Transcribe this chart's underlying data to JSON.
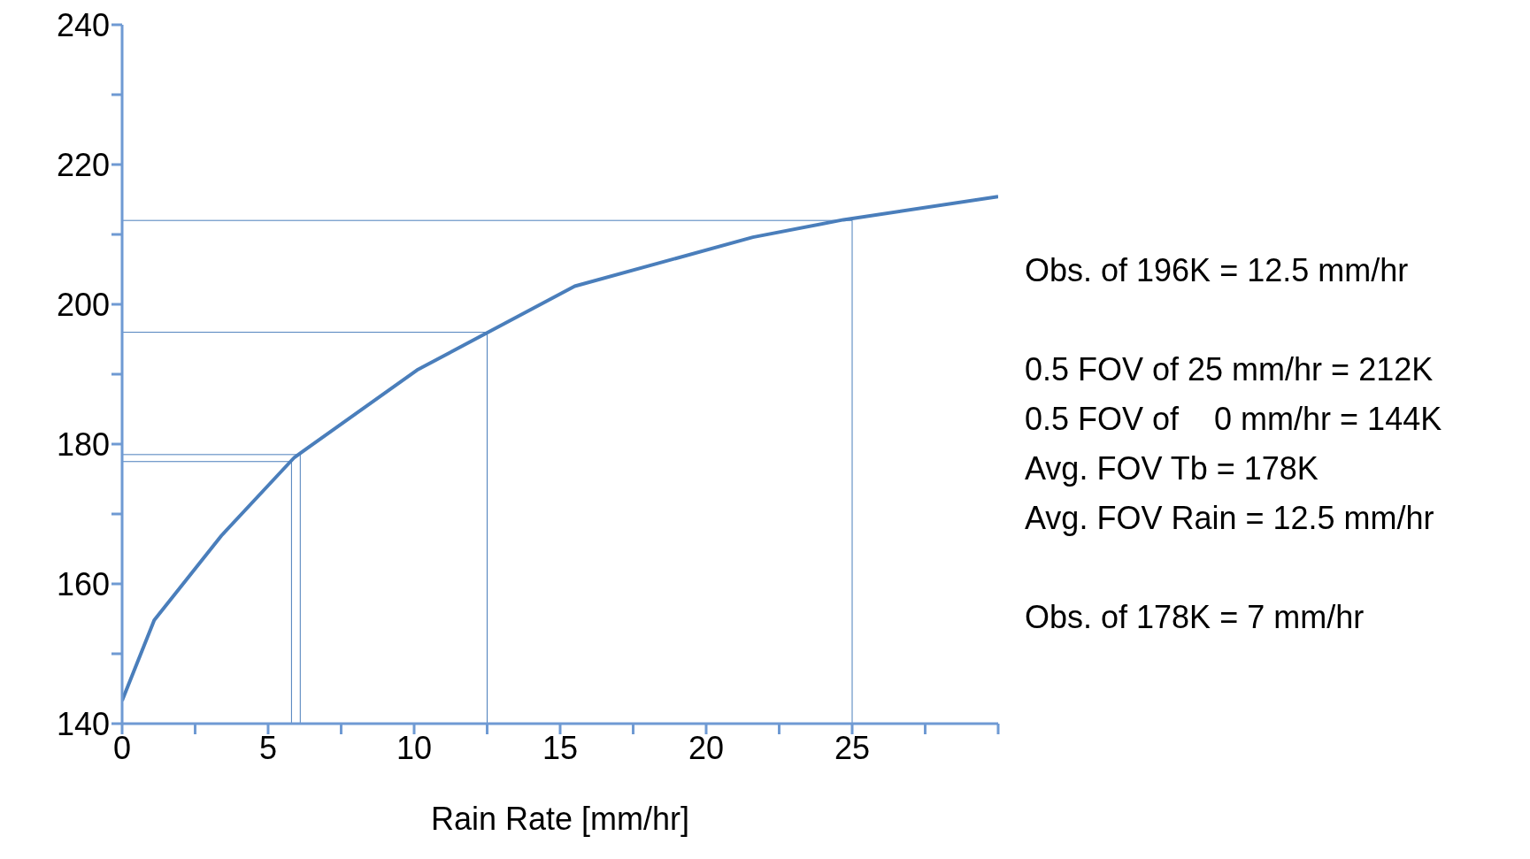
{
  "chart_data": {
    "type": "line",
    "xlabel": "Rain Rate [mm/hr]",
    "xlim": [
      0,
      30
    ],
    "ylim": [
      140,
      240
    ],
    "xticks": [
      0,
      {
        "value": 2.5,
        "label": null
      },
      5,
      {
        "value": 7.5,
        "label": null
      },
      10,
      {
        "value": 12.5,
        "label": null
      },
      15,
      {
        "value": 17.5,
        "label": null
      },
      20,
      {
        "value": 22.5,
        "label": null
      },
      25,
      {
        "value": 27.5,
        "label": null
      },
      {
        "value": 30,
        "label": null
      }
    ],
    "yticks": [
      140,
      {
        "value": 150,
        "label": null
      },
      160,
      {
        "value": 170,
        "label": null
      },
      180,
      {
        "value": 190,
        "label": null
      },
      200,
      {
        "value": 210,
        "label": null
      },
      220,
      {
        "value": 230,
        "label": null
      },
      240
    ],
    "series": [
      {
        "color": "#4a7ebb",
        "x": [
          0,
          1.1,
          3.4,
          5.9,
          10.1,
          15.5,
          21.6,
          24.7,
          30
        ],
        "values": [
          143.3,
          154.8,
          166.9,
          178.1,
          190.6,
          202.6,
          209.6,
          212.1,
          215.4
        ]
      },
      {
        "color": "#4a7ebb",
        "x": [
          0,
          25,
          25
        ],
        "values": [
          212,
          212,
          140
        ]
      },
      {
        "color": "#4a7ebb",
        "x": [
          0,
          12.5,
          12.5
        ],
        "values": [
          196,
          196,
          140
        ]
      },
      {
        "color": "#4a7ebb",
        "x": [
          0,
          5.8,
          5.8
        ],
        "values": [
          177.5,
          177.5,
          140
        ]
      },
      {
        "color": "#4a7ebb",
        "x": [
          0,
          6.1,
          6.1
        ],
        "values": [
          178.5,
          178.5,
          140
        ]
      }
    ],
    "annotations": [
      "Obs. of 196K = 12.5 mm/hr",
      "0.5 FOV of 25 mm/hr = 212K",
      "0.5 FOV of    0 mm/hr = 144K",
      "Avg. FOV Tb = 178K",
      "Avg. FOV Rain = 12.5 mm/hr",
      "Obs. of 178K = 7 mm/hr"
    ],
    "grid": false,
    "legend": false,
    "marker": "none",
    "line_style": "solid"
  }
}
